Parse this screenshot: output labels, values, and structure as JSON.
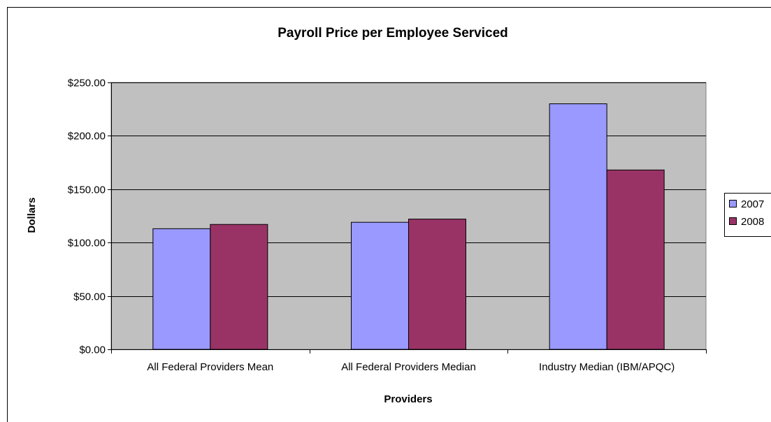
{
  "chart_data": {
    "type": "bar",
    "title": "Payroll Price per Employee Serviced",
    "xlabel": "Providers",
    "ylabel": "Dollars",
    "categories": [
      "All Federal Providers Mean",
      "All Federal Providers Median",
      "Industry Median (IBM/APQC)"
    ],
    "series": [
      {
        "name": "2007",
        "values": [
          113,
          119,
          230
        ],
        "color": "#9999FF"
      },
      {
        "name": "2008",
        "values": [
          117,
          122,
          168
        ],
        "color": "#993366"
      }
    ],
    "ylim": [
      0,
      250
    ],
    "yticks": [
      0,
      50,
      100,
      150,
      200,
      250
    ],
    "ytick_labels": [
      "$0.00",
      "$50.00",
      "$100.00",
      "$150.00",
      "$200.00",
      "$250.00"
    ],
    "grid": true,
    "plot_background": "#C0C0C0",
    "legend_position": "right"
  }
}
